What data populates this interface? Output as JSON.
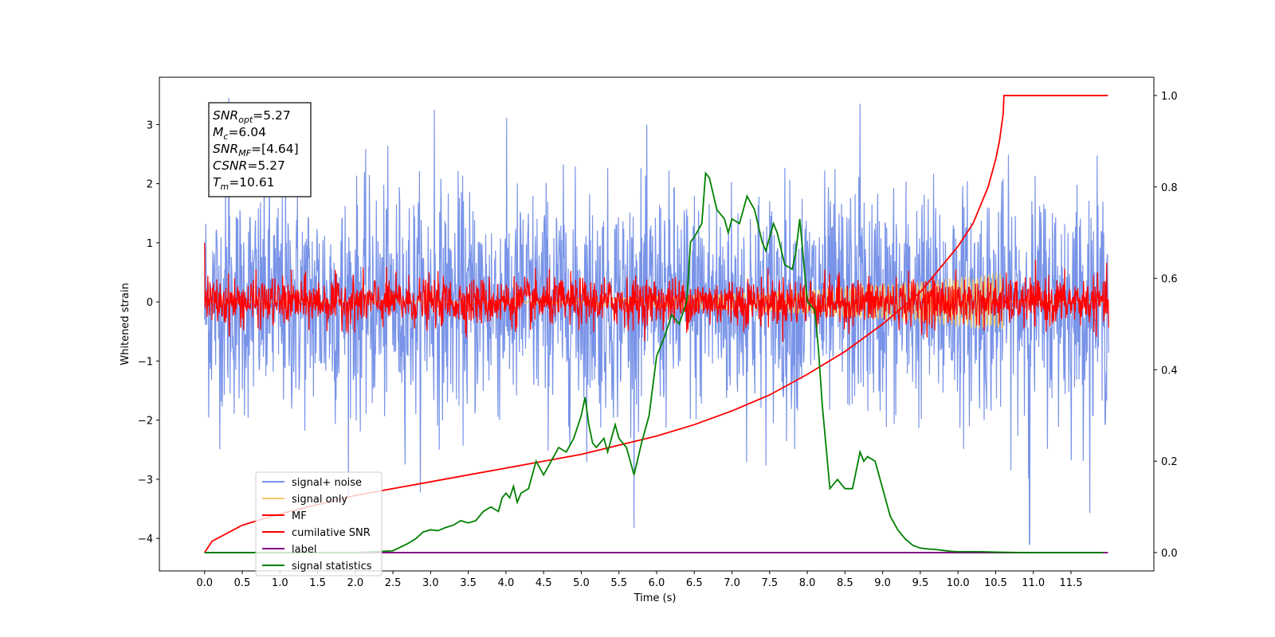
{
  "chart_data": {
    "type": "line",
    "title": "",
    "xlabel": "Time (s)",
    "ylabel": "Whitened strain",
    "xlim": [
      -0.6,
      12.6
    ],
    "ylim": [
      -4.55,
      3.8
    ],
    "y2lim": [
      -0.04,
      1.04
    ],
    "grid": false,
    "legend_position": "lower-left",
    "x_ticks": [
      "0.0",
      "0.5",
      "1.0",
      "1.5",
      "2.0",
      "2.5",
      "3.0",
      "3.5",
      "4.0",
      "4.5",
      "5.0",
      "5.5",
      "6.0",
      "6.5",
      "7.0",
      "7.5",
      "8.0",
      "8.5",
      "9.0",
      "9.5",
      "10.0",
      "10.5",
      "11.0",
      "11.5"
    ],
    "y_ticks": [
      "3",
      "2",
      "1",
      "0",
      "−1",
      "−2",
      "−3",
      "−4"
    ],
    "y2_ticks": [
      "1.0",
      "0.8",
      "0.6",
      "0.4",
      "0.2",
      "0.0"
    ],
    "annotation": [
      {
        "sym": "SNR",
        "sub": "opt",
        "val": "=5.27"
      },
      {
        "sym": "M",
        "sub": "c",
        "val": "=6.04"
      },
      {
        "sym": "SNR",
        "sub": "MF",
        "val": "=[4.64]"
      },
      {
        "sym": "CSNR",
        "sub": "",
        "val": "=5.27"
      },
      {
        "sym": "T",
        "sub": "m",
        "val": "=10.61"
      }
    ],
    "series": [
      {
        "name": "signal+ noise",
        "color": "#7893e8",
        "axis": "left",
        "style": "noise",
        "x_range": [
          0,
          12.0
        ],
        "std": 0.95,
        "notable": [
          {
            "x": 0.32,
            "y": 3.45
          },
          {
            "x": 10.95,
            "y": -4.1
          },
          {
            "x": 3.05,
            "y": 3.25
          },
          {
            "x": 8.7,
            "y": 3.35
          }
        ]
      },
      {
        "name": "signal only",
        "color": "#f5c96b",
        "axis": "left",
        "style": "chirp",
        "x_range": [
          0,
          12.0
        ],
        "peak_x": 10.6,
        "amplitude": 0.5
      },
      {
        "name": "MF",
        "color": "#ff0000",
        "axis": "left",
        "style": "noise",
        "x_range": [
          0,
          12.0
        ],
        "std": 0.2,
        "notable": [
          {
            "x": 0.0,
            "y": 1.0
          }
        ]
      },
      {
        "name": "cumilative SNR",
        "color": "#ff0000",
        "axis": "right",
        "x": [
          0,
          0.1,
          0.5,
          1.0,
          1.5,
          2.0,
          2.5,
          3.0,
          3.5,
          4.0,
          4.5,
          5.0,
          5.5,
          6.0,
          6.5,
          7.0,
          7.5,
          8.0,
          8.5,
          9.0,
          9.5,
          10.0,
          10.2,
          10.4,
          10.5,
          10.55,
          10.6,
          10.61,
          11.0,
          11.5,
          11.99
        ],
        "y": [
          0.0,
          0.025,
          0.06,
          0.085,
          0.105,
          0.125,
          0.14,
          0.155,
          0.17,
          0.185,
          0.2,
          0.215,
          0.235,
          0.255,
          0.28,
          0.31,
          0.345,
          0.39,
          0.44,
          0.5,
          0.57,
          0.67,
          0.72,
          0.8,
          0.86,
          0.9,
          0.96,
          1.0,
          1.0,
          1.0,
          1.0
        ]
      },
      {
        "name": "label",
        "color": "#800080",
        "axis": "right",
        "x": [
          0,
          11.99
        ],
        "y": [
          0.0,
          0.0
        ]
      },
      {
        "name": "signal statistics",
        "color": "#008000",
        "axis": "right",
        "x": [
          0,
          1.0,
          2.0,
          2.5,
          2.7,
          2.8,
          2.9,
          3.0,
          3.1,
          3.2,
          3.3,
          3.4,
          3.5,
          3.6,
          3.7,
          3.8,
          3.9,
          3.95,
          4.0,
          4.05,
          4.1,
          4.15,
          4.2,
          4.3,
          4.4,
          4.5,
          4.6,
          4.7,
          4.8,
          4.9,
          5.0,
          5.05,
          5.1,
          5.15,
          5.2,
          5.3,
          5.35,
          5.45,
          5.5,
          5.55,
          5.6,
          5.7,
          5.8,
          5.9,
          6.0,
          6.1,
          6.2,
          6.3,
          6.4,
          6.45,
          6.5,
          6.6,
          6.65,
          6.7,
          6.8,
          6.9,
          6.95,
          7.0,
          7.1,
          7.2,
          7.3,
          7.4,
          7.45,
          7.55,
          7.6,
          7.7,
          7.8,
          7.85,
          7.9,
          8.0,
          8.05,
          8.1,
          8.15,
          8.2,
          8.3,
          8.4,
          8.5,
          8.6,
          8.7,
          8.75,
          8.8,
          8.9,
          9.0,
          9.1,
          9.2,
          9.3,
          9.4,
          9.5,
          9.6,
          9.7,
          9.8,
          9.9,
          10.0,
          10.3,
          10.5,
          10.95,
          11.93
        ],
        "y": [
          0.0,
          0.0,
          0.0,
          0.004,
          0.02,
          0.03,
          0.045,
          0.05,
          0.048,
          0.055,
          0.06,
          0.07,
          0.065,
          0.07,
          0.09,
          0.1,
          0.09,
          0.12,
          0.13,
          0.12,
          0.145,
          0.11,
          0.13,
          0.14,
          0.2,
          0.17,
          0.2,
          0.23,
          0.22,
          0.25,
          0.3,
          0.34,
          0.28,
          0.24,
          0.23,
          0.25,
          0.22,
          0.28,
          0.25,
          0.24,
          0.23,
          0.17,
          0.24,
          0.3,
          0.43,
          0.47,
          0.52,
          0.5,
          0.55,
          0.68,
          0.69,
          0.72,
          0.83,
          0.82,
          0.75,
          0.73,
          0.7,
          0.73,
          0.72,
          0.78,
          0.75,
          0.68,
          0.66,
          0.72,
          0.7,
          0.63,
          0.62,
          0.66,
          0.73,
          0.55,
          0.54,
          0.53,
          0.44,
          0.32,
          0.14,
          0.16,
          0.14,
          0.14,
          0.22,
          0.2,
          0.21,
          0.2,
          0.14,
          0.08,
          0.05,
          0.03,
          0.016,
          0.01,
          0.008,
          0.007,
          0.005,
          0.003,
          0.002,
          0.002,
          0.001,
          0.0,
          0.0
        ]
      }
    ]
  }
}
